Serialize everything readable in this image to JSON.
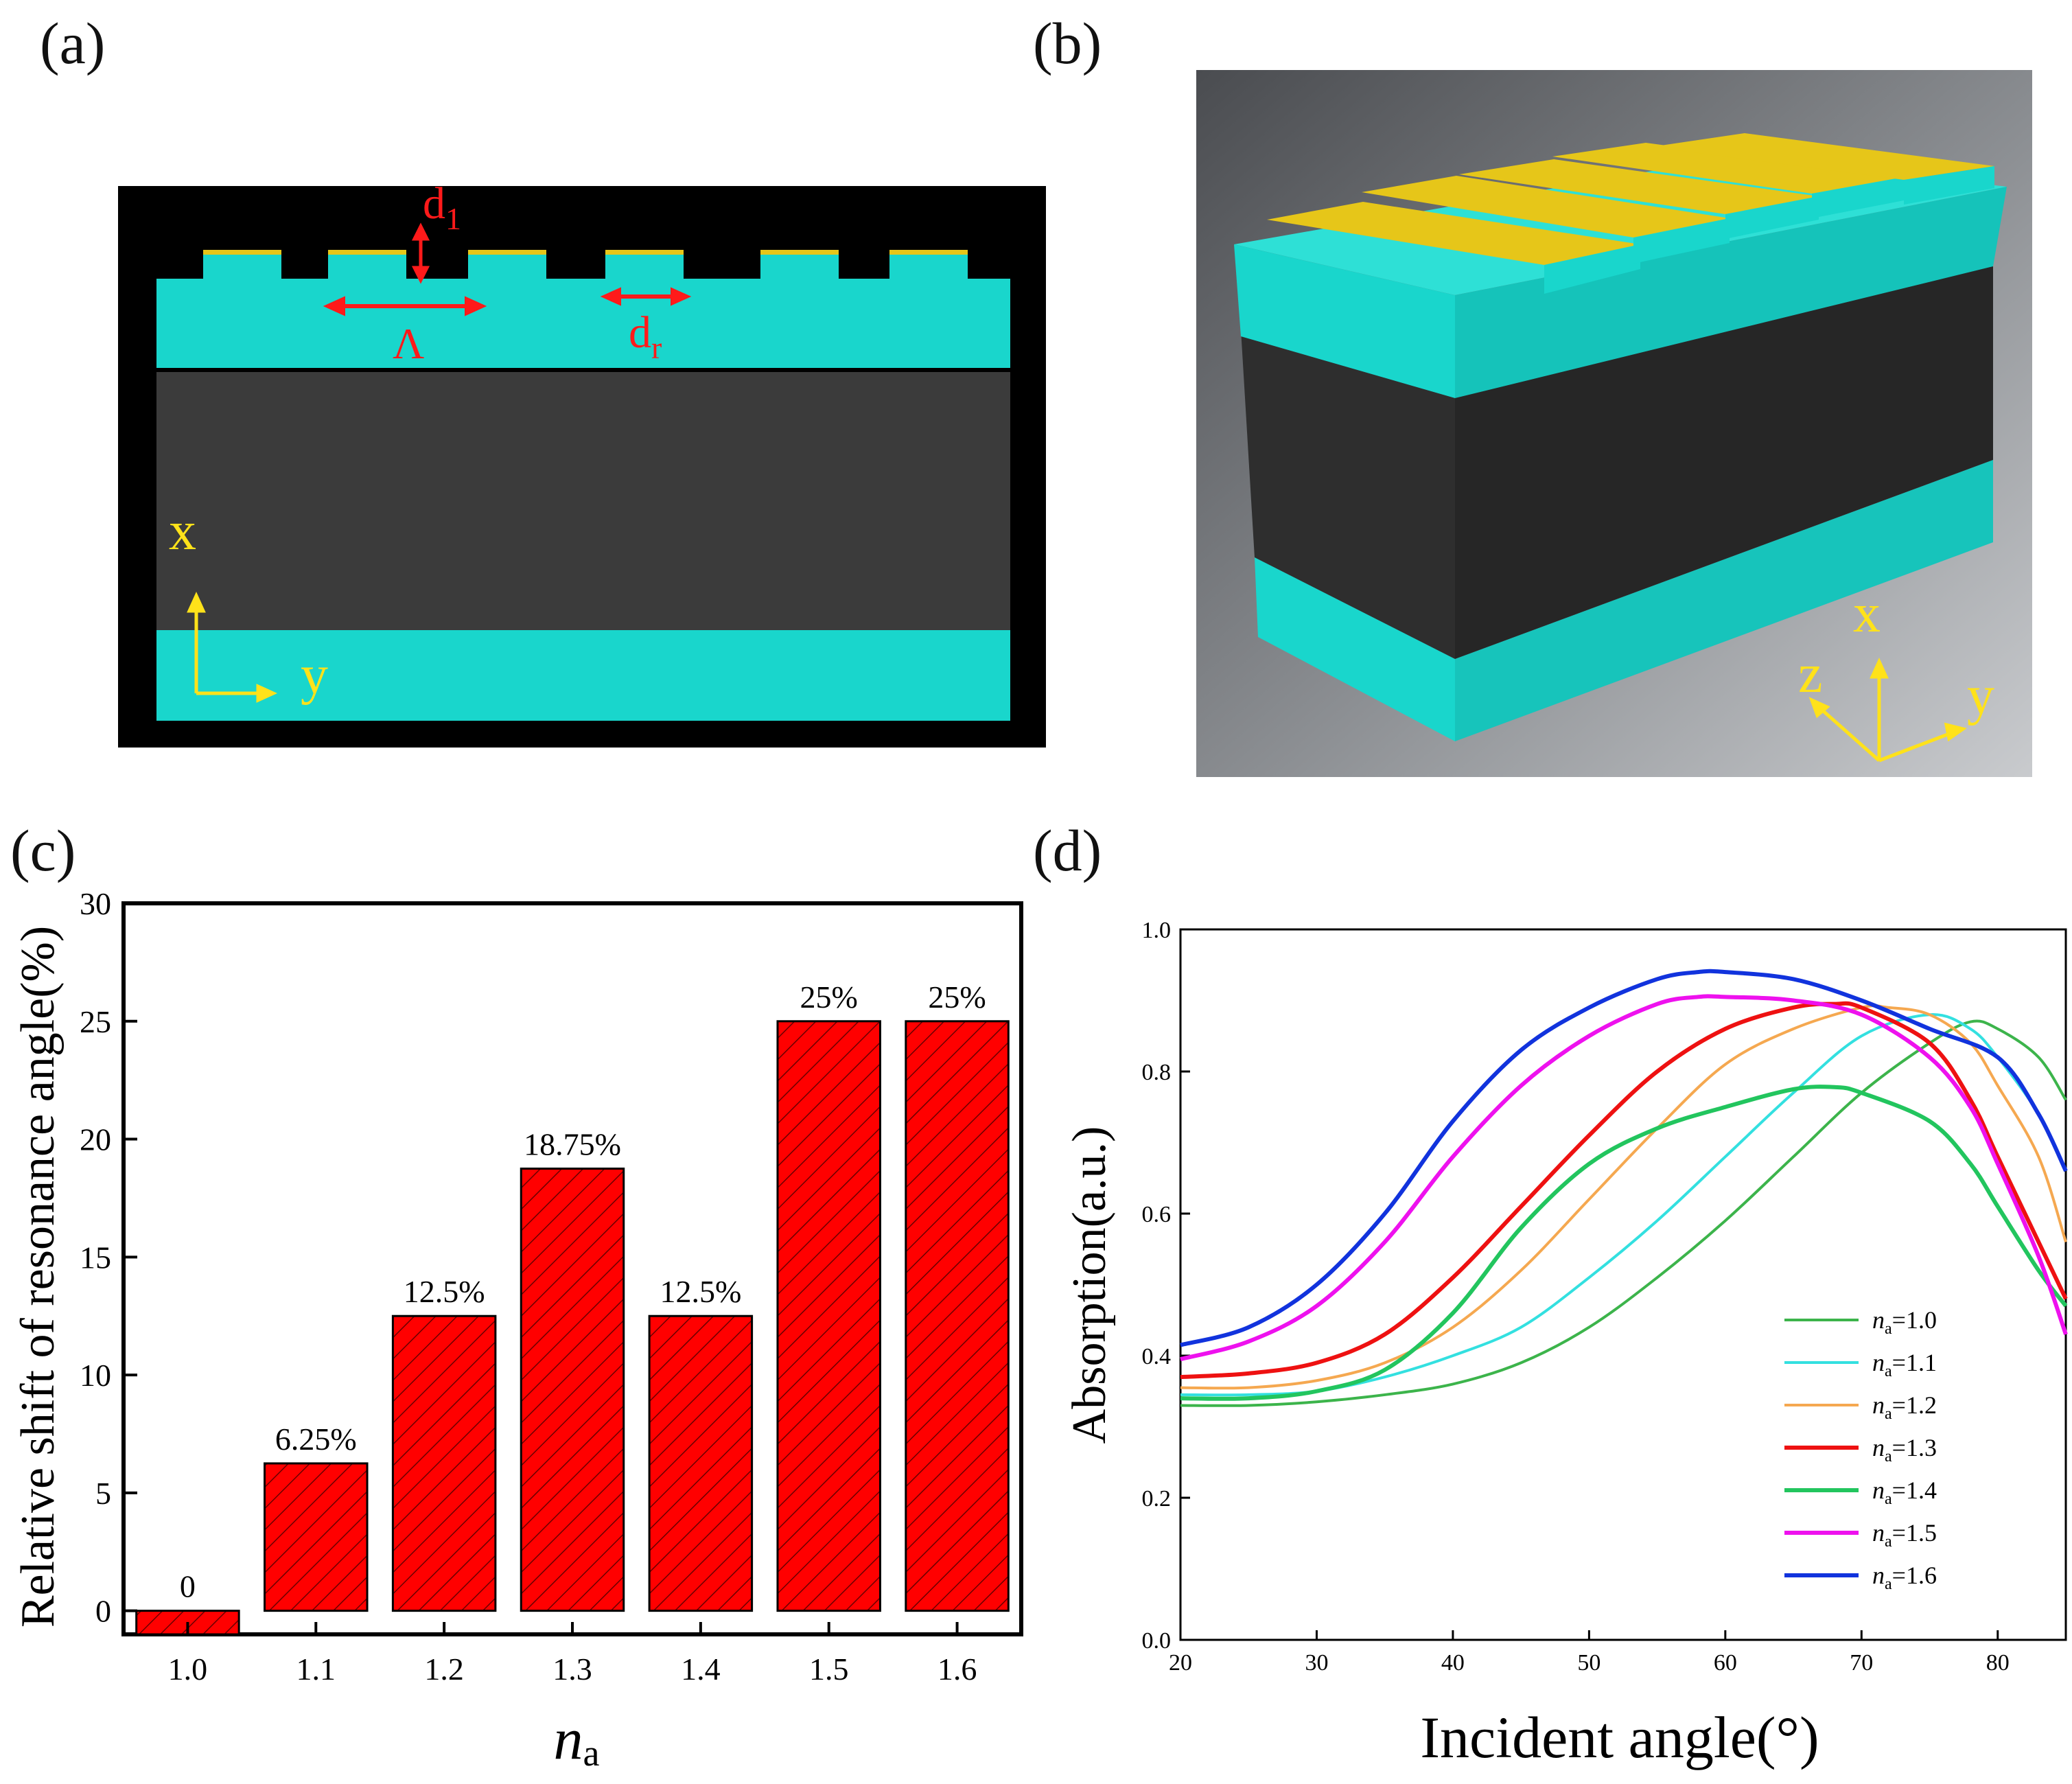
{
  "panels": {
    "a_label": "(a)",
    "b_label": "(b)",
    "c_label": "(c)",
    "d_label": "(d)"
  },
  "schematic_a": {
    "d1": "d",
    "d1_sub": "1",
    "lambda": "Λ",
    "dr": "d",
    "dr_sub": "r",
    "x": "x",
    "y": "y",
    "colors": {
      "cladding": "#19d6cc",
      "core": "#3a3a3a",
      "gold": "#e6c619",
      "annot": "#ff1a1a",
      "axis": "#ffe21a"
    }
  },
  "schematic_b": {
    "x": "x",
    "y": "y",
    "z": "z"
  },
  "chart_data": [
    {
      "type": "bar",
      "xlabel_main": "n",
      "xlabel_sub": "a",
      "ylabel": "Relative shift of resonance angle(%)",
      "categories": [
        "1.0",
        "1.1",
        "1.2",
        "1.3",
        "1.4",
        "1.5",
        "1.6"
      ],
      "values": [
        0,
        6.25,
        12.5,
        18.75,
        12.5,
        25,
        25
      ],
      "data_labels": [
        "0",
        "6.25%",
        "12.5%",
        "18.75%",
        "12.5%",
        "25%",
        "25%"
      ],
      "yticks": [
        "0",
        "5",
        "10",
        "15",
        "20",
        "25",
        "30"
      ],
      "ylim": [
        -1,
        30
      ],
      "bar_color": "#ff0000",
      "hatch": "diagonal"
    },
    {
      "type": "line",
      "xlabel": "Incident angle(°)",
      "ylabel": "Absorption(a.u.)",
      "xlim": [
        20,
        85
      ],
      "ylim": [
        0.0,
        1.0
      ],
      "xticks": [
        "20",
        "30",
        "40",
        "50",
        "60",
        "70",
        "80"
      ],
      "yticks": [
        "0.0",
        "0.2",
        "0.4",
        "0.6",
        "0.8",
        "1.0"
      ],
      "legend_position": "bottom-right",
      "legend_prefix": "n",
      "legend_sub": "a",
      "series": [
        {
          "name": "=1.0",
          "color": "#3cb44b",
          "x": [
            20,
            25,
            30,
            35,
            40,
            45,
            50,
            55,
            60,
            65,
            70,
            75,
            78,
            80,
            83,
            85
          ],
          "y": [
            0.33,
            0.33,
            0.335,
            0.345,
            0.36,
            0.39,
            0.44,
            0.51,
            0.59,
            0.68,
            0.77,
            0.84,
            0.87,
            0.86,
            0.82,
            0.76
          ]
        },
        {
          "name": "=1.1",
          "color": "#33e0e0",
          "x": [
            20,
            25,
            30,
            35,
            40,
            45,
            50,
            55,
            60,
            65,
            70,
            75,
            78,
            80,
            83,
            85
          ],
          "y": [
            0.345,
            0.345,
            0.35,
            0.37,
            0.4,
            0.44,
            0.51,
            0.59,
            0.68,
            0.77,
            0.85,
            0.88,
            0.86,
            0.82,
            0.74,
            0.66
          ]
        },
        {
          "name": "=1.2",
          "color": "#f5a850",
          "x": [
            20,
            25,
            30,
            35,
            40,
            45,
            50,
            55,
            60,
            65,
            70,
            72,
            75,
            78,
            80,
            83,
            85
          ],
          "y": [
            0.355,
            0.355,
            0.365,
            0.39,
            0.44,
            0.52,
            0.62,
            0.72,
            0.81,
            0.86,
            0.89,
            0.89,
            0.88,
            0.84,
            0.78,
            0.68,
            0.56
          ]
        },
        {
          "name": "=1.3",
          "color": "#ee1111",
          "x": [
            20,
            25,
            30,
            35,
            40,
            45,
            50,
            55,
            60,
            65,
            68,
            70,
            75,
            78,
            80,
            83,
            85
          ],
          "y": [
            0.37,
            0.375,
            0.39,
            0.43,
            0.51,
            0.61,
            0.71,
            0.8,
            0.86,
            0.89,
            0.895,
            0.89,
            0.84,
            0.76,
            0.68,
            0.56,
            0.48
          ]
        },
        {
          "name": "=1.4",
          "color": "#22c55e",
          "x": [
            20,
            25,
            30,
            35,
            40,
            45,
            50,
            55,
            60,
            65,
            68,
            70,
            75,
            78,
            80,
            83,
            85
          ],
          "y": [
            0.34,
            0.34,
            0.35,
            0.38,
            0.46,
            0.58,
            0.67,
            0.72,
            0.75,
            0.775,
            0.778,
            0.77,
            0.73,
            0.67,
            0.61,
            0.52,
            0.47
          ]
        },
        {
          "name": "=1.5",
          "color": "#ee11ee",
          "x": [
            20,
            25,
            30,
            35,
            40,
            45,
            50,
            55,
            58,
            60,
            65,
            70,
            75,
            78,
            80,
            83,
            85
          ],
          "y": [
            0.395,
            0.42,
            0.47,
            0.56,
            0.68,
            0.78,
            0.85,
            0.895,
            0.905,
            0.905,
            0.9,
            0.88,
            0.82,
            0.75,
            0.67,
            0.54,
            0.43
          ]
        },
        {
          "name": "=1.6",
          "color": "#1133dd",
          "x": [
            20,
            25,
            30,
            35,
            40,
            45,
            50,
            55,
            58,
            60,
            65,
            70,
            75,
            80,
            83,
            85
          ],
          "y": [
            0.415,
            0.44,
            0.5,
            0.6,
            0.73,
            0.83,
            0.89,
            0.93,
            0.94,
            0.94,
            0.93,
            0.9,
            0.86,
            0.82,
            0.74,
            0.66
          ]
        }
      ]
    }
  ]
}
